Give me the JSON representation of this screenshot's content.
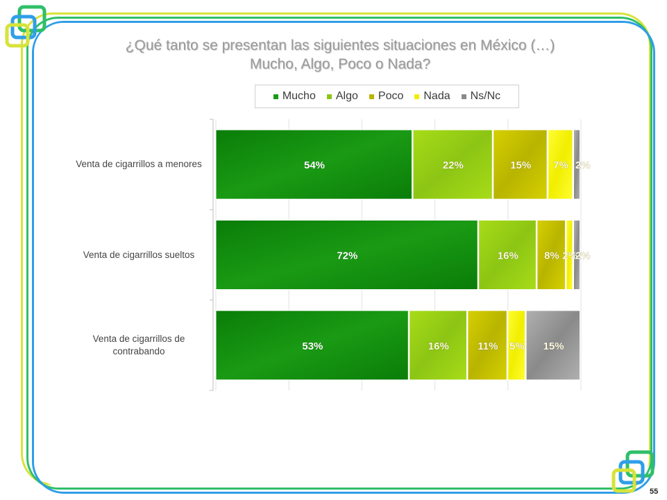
{
  "slide": {
    "title_line1": "¿Qué tanto se presentan las siguientes situaciones en México (…)",
    "title_line2": "Mucho, Algo, Poco  o Nada?",
    "page_number": "55"
  },
  "chart_data": {
    "type": "bar",
    "orientation": "horizontal",
    "stacked": true,
    "categories": [
      "Venta de cigarrillos a menores",
      "Venta de cigarrillos sueltos",
      "Venta de cigarrillos de contrabando"
    ],
    "category_lines": [
      [
        "Venta de cigarrillos a menores"
      ],
      [
        "Venta de cigarrillos sueltos"
      ],
      [
        "Venta de cigarrillos de",
        "contrabando"
      ]
    ],
    "series": [
      {
        "name": "Mucho",
        "values": [
          54,
          72,
          53
        ],
        "labels": [
          "54%",
          "72%",
          "53%"
        ],
        "color": "#1a9a14",
        "color2": "#0a7d08"
      },
      {
        "name": "Algo",
        "values": [
          22,
          16,
          16
        ],
        "labels": [
          "22%",
          "16%",
          "16%"
        ],
        "color": "#8cc514",
        "color2": "#a8dc18"
      },
      {
        "name": "Poco",
        "values": [
          15,
          8,
          11
        ],
        "labels": [
          "15%",
          "8%",
          "11%"
        ],
        "color": "#b8b400",
        "color2": "#d6d000"
      },
      {
        "name": "Nada",
        "values": [
          7,
          2,
          5
        ],
        "labels": [
          "7%",
          "2%",
          "5%"
        ],
        "color": "#f1ee00",
        "color2": "#fffd30"
      },
      {
        "name": "Ns/Nc",
        "values": [
          2,
          2,
          15
        ],
        "labels": [
          "2%",
          "2%",
          "15%"
        ],
        "color": "#8a8a8a",
        "color2": "#b0b0b0"
      }
    ],
    "xlim": [
      0,
      100
    ],
    "legend_position": "top-center",
    "grid": true
  },
  "colors": {
    "frame_blue": "#2f9ee8",
    "frame_green": "#2fbf6a",
    "frame_yellow": "#d7e33a",
    "title_gray": "#9a9a9a"
  }
}
